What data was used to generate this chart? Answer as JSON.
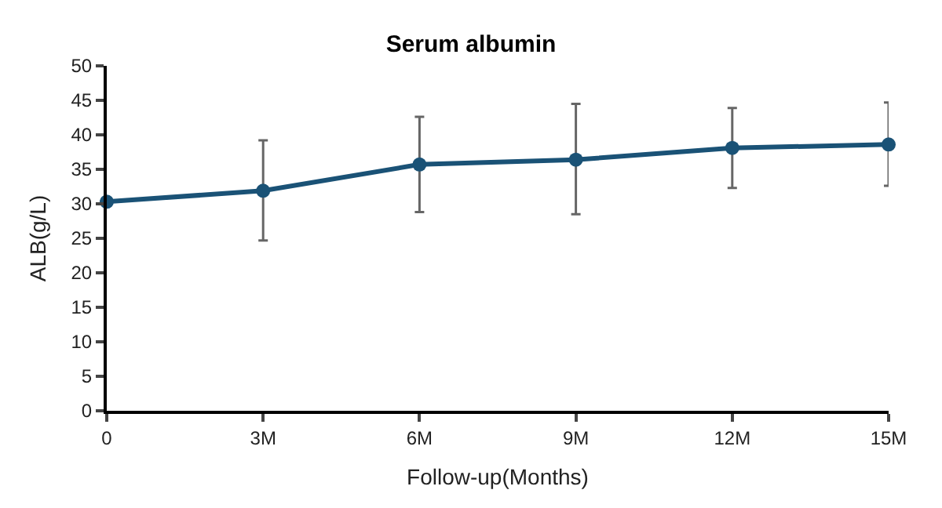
{
  "chart_data": {
    "type": "line",
    "title": "Serum albumin",
    "xlabel": "Follow-up(Months)",
    "ylabel": "ALB(g/L)",
    "categories": [
      "0",
      "3M",
      "6M",
      "9M",
      "12M",
      "15M"
    ],
    "series": [
      {
        "color": "#1a5276",
        "values": [
          30.3,
          31.9,
          35.7,
          36.4,
          38.1,
          38.6
        ],
        "errors": [
          null,
          [
            24.7,
            39.2
          ],
          [
            28.8,
            42.6
          ],
          [
            28.5,
            44.5
          ],
          [
            32.3,
            43.9
          ],
          [
            32.6,
            44.7
          ]
        ]
      }
    ],
    "ylim": [
      0,
      50
    ],
    "yticks": [
      0,
      5,
      10,
      15,
      20,
      25,
      30,
      35,
      40,
      45,
      50
    ],
    "grid": false,
    "marker": "circle",
    "line_style": "solid"
  }
}
